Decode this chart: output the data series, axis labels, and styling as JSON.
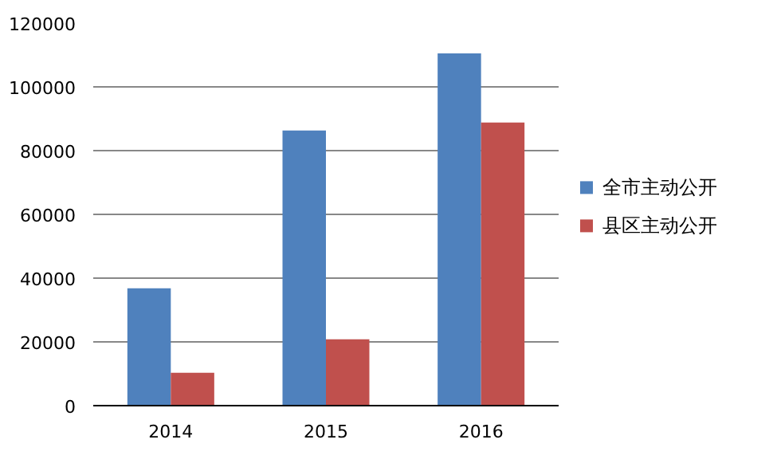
{
  "chart_data": {
    "type": "bar",
    "categories": [
      "2014",
      "2015",
      "2016"
    ],
    "series": [
      {
        "name": "全市主动公开",
        "color": "#4f81bd",
        "values": [
          36800,
          86300,
          110500
        ]
      },
      {
        "name": "县区主动公开",
        "color": "#c0504d",
        "values": [
          10300,
          20800,
          88800
        ]
      }
    ],
    "ylim": [
      0,
      120000
    ],
    "yticks": [
      0,
      20000,
      40000,
      60000,
      80000,
      100000,
      120000
    ],
    "grid": "y",
    "legend": "right"
  }
}
